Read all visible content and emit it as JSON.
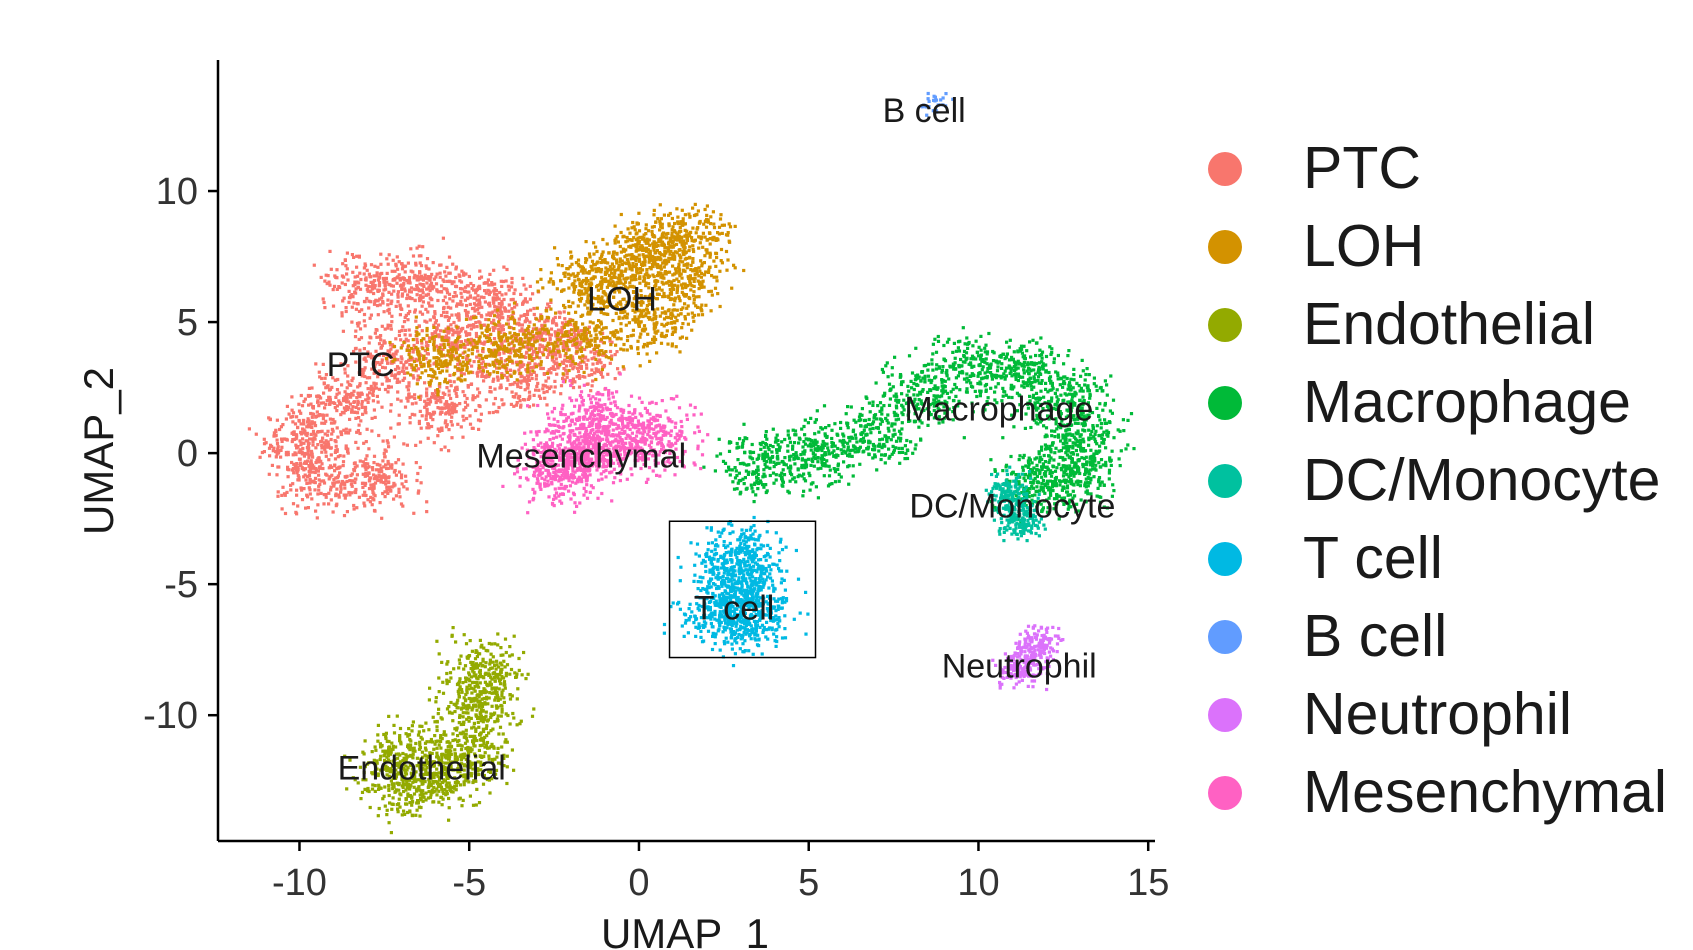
{
  "chart_data": {
    "type": "scatter",
    "title": "",
    "xlabel": "UMAP_1",
    "ylabel": "UMAP_2",
    "xlim": [
      -12.4,
      15.2
    ],
    "ylim": [
      -14.8,
      15.0
    ],
    "xticks": [
      -10,
      -5,
      0,
      5,
      10,
      15
    ],
    "yticks": [
      -10,
      -5,
      0,
      5,
      10
    ],
    "grid": false,
    "legend_position": "right",
    "series": [
      {
        "name": "PTC",
        "color": "#F8766D",
        "label_at": [
          -8.2,
          3.4
        ],
        "centers": [
          [
            -8.0,
            6.3
          ],
          [
            -6.5,
            6.5
          ],
          [
            -4.6,
            5.9
          ],
          [
            -3.0,
            4.6
          ],
          [
            -5.5,
            4.5
          ],
          [
            -7.4,
            3.6
          ],
          [
            -8.8,
            2.0
          ],
          [
            -9.9,
            0.6
          ],
          [
            -9.6,
            -0.8
          ],
          [
            -7.8,
            -1.0
          ],
          [
            -5.8,
            1.8
          ],
          [
            -3.8,
            3.0
          ],
          [
            -1.8,
            3.7
          ]
        ]
      },
      {
        "name": "LOH",
        "color": "#D39200",
        "label_at": [
          -0.5,
          5.9
        ],
        "centers": [
          [
            0.4,
            8.0
          ],
          [
            1.5,
            8.2
          ],
          [
            1.3,
            6.5
          ],
          [
            -0.4,
            7.1
          ],
          [
            -1.5,
            6.6
          ],
          [
            0.2,
            5.1
          ],
          [
            -1.7,
            4.6
          ],
          [
            -3.8,
            4.1
          ],
          [
            -6.0,
            3.8
          ]
        ]
      },
      {
        "name": "Endothelial",
        "color": "#93AA00",
        "label_at": [
          -6.4,
          -12.0
        ],
        "centers": [
          [
            -7.0,
            -11.5
          ],
          [
            -5.8,
            -12.2
          ],
          [
            -5.0,
            -11.2
          ],
          [
            -4.8,
            -9.5
          ],
          [
            -4.6,
            -8.2
          ],
          [
            -6.9,
            -12.7
          ]
        ]
      },
      {
        "name": "Macrophage",
        "color": "#00BA38",
        "label_at": [
          10.6,
          1.7
        ],
        "centers": [
          [
            3.5,
            -0.3
          ],
          [
            5.2,
            0.0
          ],
          [
            6.8,
            0.8
          ],
          [
            8.3,
            2.3
          ],
          [
            9.8,
            3.3
          ],
          [
            11.3,
            3.1
          ],
          [
            12.5,
            2.1
          ],
          [
            13.1,
            0.7
          ],
          [
            12.8,
            -0.8
          ],
          [
            11.7,
            -1.1
          ]
        ]
      },
      {
        "name": "DC/Monocyte",
        "color": "#00C19F",
        "label_at": [
          11.0,
          -2.0
        ],
        "centers": [
          [
            10.8,
            -1.3
          ],
          [
            11.1,
            -2.0
          ],
          [
            11.2,
            -2.6
          ]
        ]
      },
      {
        "name": "T cell",
        "color": "#00B9E3",
        "label_at": [
          2.8,
          -5.9
        ],
        "centers": [
          [
            2.8,
            -4.6
          ],
          [
            2.9,
            -5.6
          ],
          [
            2.4,
            -6.2
          ],
          [
            3.3,
            -6.2
          ],
          [
            2.9,
            -3.8
          ]
        ]
      },
      {
        "name": "B cell",
        "color": "#619CFF",
        "label_at": [
          8.4,
          13.1
        ],
        "centers": [
          [
            8.7,
            13.4
          ]
        ]
      },
      {
        "name": "Neutrophil",
        "color": "#DB72FB",
        "label_at": [
          11.2,
          -8.1
        ],
        "centers": [
          [
            11.5,
            -7.7
          ],
          [
            11.8,
            -7.1
          ],
          [
            11.1,
            -8.2
          ]
        ]
      },
      {
        "name": "Mesenchymal",
        "color": "#FF61C3",
        "label_at": [
          -1.7,
          -0.1
        ],
        "centers": [
          [
            -2.2,
            -0.2
          ],
          [
            -1.6,
            0.3
          ],
          [
            -0.6,
            0.4
          ],
          [
            0.5,
            0.7
          ],
          [
            -1.4,
            1.5
          ],
          [
            -2.3,
            -0.7
          ]
        ]
      }
    ],
    "highlight_box": {
      "x": [
        0.9,
        5.2
      ],
      "y": [
        -7.8,
        -2.6
      ]
    }
  }
}
